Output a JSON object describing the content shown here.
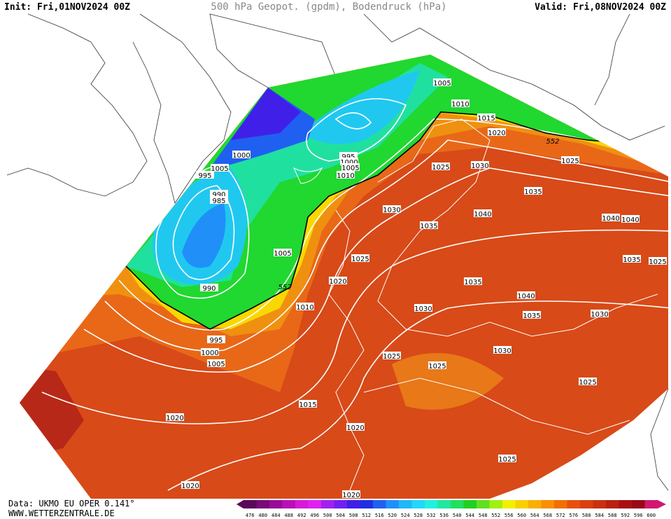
{
  "header": {
    "init": "Init: Fri,01NOV2024 00Z",
    "title": "500 hPa Geopot. (gpdm), Bodendruck (hPa)",
    "valid": "Valid: Fri,08NOV2024 00Z"
  },
  "footer": {
    "source": "Data: UKMO EU OPER 0.141°",
    "website": "WWW.WETTERZENTRALE.DE"
  },
  "colorbar": {
    "labels": [
      476,
      480,
      484,
      488,
      492,
      496,
      500,
      504,
      508,
      512,
      516,
      520,
      524,
      528,
      532,
      536,
      540,
      544,
      548,
      552,
      556,
      560,
      564,
      568,
      572,
      576,
      580,
      584,
      588,
      592,
      596,
      600
    ],
    "colors": [
      "#5a0858",
      "#780a78",
      "#980c98",
      "#b810b8",
      "#d818d8",
      "#e020f0",
      "#a020f0",
      "#7020f0",
      "#4020e8",
      "#2030e0",
      "#2060f0",
      "#2090f8",
      "#20b8f8",
      "#20d8f8",
      "#20f0e0",
      "#20e8a0",
      "#20e060",
      "#20d020",
      "#60e020",
      "#a0f010",
      "#f0f000",
      "#f8d000",
      "#f8b000",
      "#f89000",
      "#f07000",
      "#e85010",
      "#d84010",
      "#c83010",
      "#b82010",
      "#a81010",
      "#980818",
      "#d01870"
    ]
  },
  "map": {
    "isobar_labels": [
      "1005",
      "1010",
      "1015",
      "1020",
      "1025",
      "1030",
      "1025",
      "1035",
      "1030",
      "1040",
      "1040",
      "1040",
      "1035",
      "1025",
      "1020",
      "1035",
      "1040",
      "1035",
      "1025",
      "1030",
      "1035",
      "1030",
      "1030",
      "1025",
      "1025",
      "1025",
      "1015",
      "1020",
      "1020",
      "1025",
      "1020",
      "1020",
      "1000",
      "1005",
      "995",
      "990",
      "985",
      "995",
      "1000",
      "1005",
      "1010",
      "1005",
      "990",
      "1010",
      "995",
      "1000",
      "1005"
    ],
    "contour_labels": [
      "552",
      "552"
    ]
  }
}
